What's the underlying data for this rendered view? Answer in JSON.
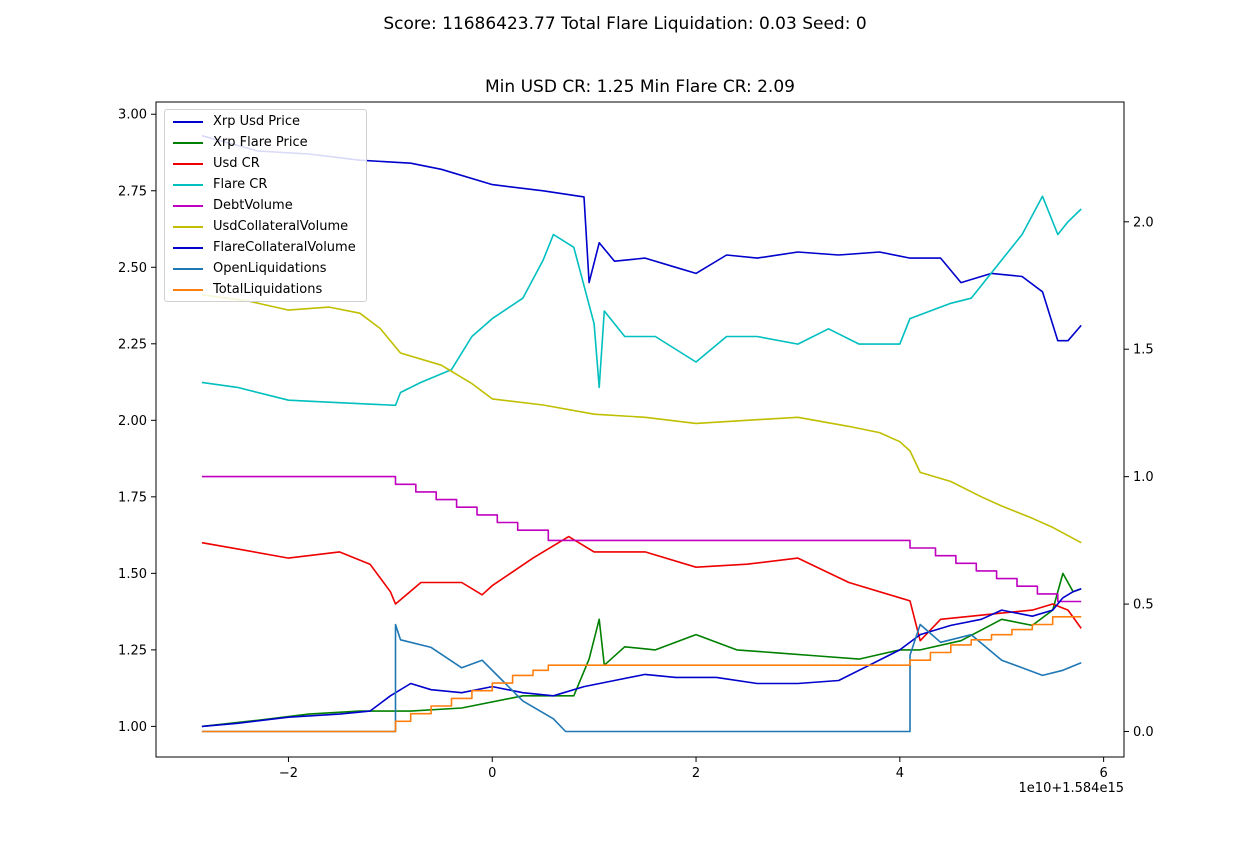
{
  "suptitle": "Score: 11686423.77 Total Flare Liquidation: 0.03 Seed: 0",
  "axes_title": "Min USD CR: 1.25 Min Flare CR: 2.09",
  "x_offset_label": "1e10+1.584e15",
  "chart_data": {
    "type": "line",
    "title": "Min USD CR: 1.25 Min Flare CR: 2.09",
    "xlim": [
      -3.3,
      6.2
    ],
    "ylim_left": [
      0.9,
      3.04
    ],
    "ylim_right": [
      -0.1,
      2.47
    ],
    "x_ticks": [
      -2,
      0,
      2,
      4,
      6
    ],
    "x_tick_labels": [
      "−2",
      "0",
      "2",
      "4",
      "6"
    ],
    "y_ticks_left": [
      1.0,
      1.25,
      1.5,
      1.75,
      2.0,
      2.25,
      2.5,
      2.75,
      3.0
    ],
    "y_tick_labels_left": [
      "1.00",
      "1.25",
      "1.50",
      "1.75",
      "2.00",
      "2.25",
      "2.50",
      "2.75",
      "3.00"
    ],
    "y_ticks_right": [
      0.0,
      0.5,
      1.0,
      1.5,
      2.0
    ],
    "y_tick_labels_right": [
      "0.0",
      "0.5",
      "1.0",
      "1.5",
      "2.0"
    ],
    "grid": false,
    "legend_position": "top-left",
    "series": [
      {
        "name": "Xrp Usd Price",
        "color": "#0000cc",
        "axis": "left",
        "x": [
          -2.85,
          -2.3,
          -1.8,
          -1.3,
          -0.8,
          -0.5,
          0,
          0.5,
          0.9,
          0.95,
          1.05,
          1.2,
          1.5,
          1.8,
          2.0,
          2.3,
          2.6,
          3.0,
          3.4,
          3.8,
          4.1,
          4.4,
          4.6,
          4.9,
          5.2,
          5.4,
          5.55,
          5.65,
          5.78
        ],
        "y": [
          2.93,
          2.88,
          2.87,
          2.85,
          2.84,
          2.82,
          2.77,
          2.75,
          2.73,
          2.45,
          2.58,
          2.52,
          2.53,
          2.5,
          2.48,
          2.54,
          2.53,
          2.55,
          2.54,
          2.55,
          2.53,
          2.53,
          2.45,
          2.48,
          2.47,
          2.42,
          2.26,
          2.26,
          2.31
        ]
      },
      {
        "name": "Xrp Flare Price",
        "color": "#008000",
        "axis": "left",
        "x": [
          -2.85,
          -2.3,
          -1.8,
          -1.3,
          -0.8,
          -0.3,
          0.3,
          0.8,
          0.95,
          1.05,
          1.1,
          1.3,
          1.6,
          2.0,
          2.4,
          2.8,
          3.2,
          3.6,
          4.0,
          4.2,
          4.6,
          5.0,
          5.3,
          5.5,
          5.6,
          5.7,
          5.78
        ],
        "y": [
          1.0,
          1.02,
          1.04,
          1.05,
          1.05,
          1.06,
          1.1,
          1.1,
          1.22,
          1.35,
          1.2,
          1.26,
          1.25,
          1.3,
          1.25,
          1.24,
          1.23,
          1.22,
          1.25,
          1.25,
          1.28,
          1.35,
          1.33,
          1.38,
          1.5,
          1.44,
          1.45
        ]
      },
      {
        "name": "Usd CR",
        "color": "#ee0000",
        "axis": "left",
        "x": [
          -2.85,
          -2.5,
          -2.0,
          -1.5,
          -1.2,
          -1.0,
          -0.95,
          -0.7,
          -0.3,
          -0.1,
          0,
          0.4,
          0.75,
          1.0,
          1.5,
          2.0,
          2.5,
          3.0,
          3.5,
          4.0,
          4.1,
          4.2,
          4.4,
          4.7,
          5.0,
          5.3,
          5.5,
          5.65,
          5.78
        ],
        "y": [
          1.6,
          1.58,
          1.55,
          1.57,
          1.53,
          1.44,
          1.4,
          1.47,
          1.47,
          1.43,
          1.46,
          1.55,
          1.62,
          1.57,
          1.57,
          1.52,
          1.53,
          1.55,
          1.47,
          1.42,
          1.41,
          1.28,
          1.35,
          1.36,
          1.37,
          1.38,
          1.4,
          1.38,
          1.32
        ]
      },
      {
        "name": "Flare CR",
        "color": "#00bfbf",
        "axis": "right",
        "x": [
          -2.85,
          -2.5,
          -2.0,
          -1.5,
          -0.95,
          -0.9,
          -0.7,
          -0.4,
          -0.2,
          0,
          0.3,
          0.5,
          0.6,
          0.8,
          1.0,
          1.05,
          1.1,
          1.3,
          1.6,
          2.0,
          2.3,
          2.6,
          3.0,
          3.3,
          3.6,
          4.0,
          4.1,
          4.5,
          4.7,
          5.0,
          5.2,
          5.4,
          5.55,
          5.65,
          5.78
        ],
        "y": [
          1.37,
          1.35,
          1.3,
          1.29,
          1.28,
          1.33,
          1.37,
          1.42,
          1.55,
          1.62,
          1.7,
          1.85,
          1.95,
          1.9,
          1.6,
          1.35,
          1.65,
          1.55,
          1.55,
          1.45,
          1.55,
          1.55,
          1.52,
          1.58,
          1.52,
          1.52,
          1.62,
          1.68,
          1.7,
          1.85,
          1.95,
          2.1,
          1.95,
          2.0,
          2.05
        ]
      },
      {
        "name": "DebtVolume",
        "color": "#bf00bf",
        "axis": "right",
        "x": [
          -2.85,
          -0.95,
          -0.95,
          -0.75,
          -0.75,
          -0.55,
          -0.55,
          -0.35,
          -0.35,
          -0.15,
          -0.15,
          0.05,
          0.05,
          0.25,
          0.25,
          0.55,
          0.55,
          4.1,
          4.1,
          4.35,
          4.35,
          4.55,
          4.55,
          4.75,
          4.75,
          4.95,
          4.95,
          5.15,
          5.15,
          5.35,
          5.35,
          5.55,
          5.55,
          5.78
        ],
        "y": [
          1.0,
          1.0,
          0.97,
          0.97,
          0.94,
          0.94,
          0.91,
          0.91,
          0.88,
          0.88,
          0.85,
          0.85,
          0.82,
          0.82,
          0.79,
          0.79,
          0.75,
          0.75,
          0.72,
          0.72,
          0.69,
          0.69,
          0.66,
          0.66,
          0.63,
          0.63,
          0.6,
          0.6,
          0.57,
          0.57,
          0.54,
          0.54,
          0.51,
          0.51
        ]
      },
      {
        "name": "UsdCollateralVolume",
        "color": "#bfbf00",
        "axis": "left",
        "x": [
          -2.85,
          -2.4,
          -2.0,
          -1.6,
          -1.3,
          -1.1,
          -0.9,
          -0.5,
          -0.2,
          0,
          0.5,
          1.0,
          1.5,
          2.0,
          2.5,
          3.0,
          3.5,
          3.8,
          4.0,
          4.1,
          4.2,
          4.5,
          4.8,
          5.0,
          5.3,
          5.5,
          5.78
        ],
        "y": [
          2.41,
          2.39,
          2.36,
          2.37,
          2.35,
          2.3,
          2.22,
          2.18,
          2.12,
          2.07,
          2.05,
          2.02,
          2.01,
          1.99,
          2.0,
          2.01,
          1.98,
          1.96,
          1.93,
          1.9,
          1.83,
          1.8,
          1.75,
          1.72,
          1.68,
          1.65,
          1.6
        ]
      },
      {
        "name": "FlareCollateralVolume",
        "color": "#0000cc",
        "axis": "left",
        "x": [
          -2.85,
          -2.5,
          -2.0,
          -1.5,
          -1.2,
          -1.0,
          -0.8,
          -0.6,
          -0.3,
          0,
          0.3,
          0.6,
          0.9,
          1.2,
          1.5,
          1.8,
          2.2,
          2.6,
          3.0,
          3.4,
          3.7,
          4.0,
          4.2,
          4.5,
          4.8,
          5.0,
          5.3,
          5.5,
          5.6,
          5.7,
          5.78
        ],
        "y": [
          1.0,
          1.01,
          1.03,
          1.04,
          1.05,
          1.1,
          1.14,
          1.12,
          1.11,
          1.13,
          1.11,
          1.1,
          1.13,
          1.15,
          1.17,
          1.16,
          1.16,
          1.14,
          1.14,
          1.15,
          1.2,
          1.25,
          1.3,
          1.33,
          1.35,
          1.38,
          1.36,
          1.38,
          1.42,
          1.44,
          1.45
        ]
      },
      {
        "name": "OpenLiquidations",
        "color": "#1f77b4",
        "axis": "right",
        "x": [
          -2.85,
          -0.95,
          -0.95,
          -0.9,
          -0.6,
          -0.3,
          -0.1,
          0.1,
          0.3,
          0.6,
          0.72,
          0.72,
          4.1,
          4.1,
          4.2,
          4.4,
          4.7,
          5.0,
          5.2,
          5.4,
          5.6,
          5.78
        ],
        "y": [
          0.0,
          0.0,
          0.42,
          0.36,
          0.33,
          0.25,
          0.28,
          0.2,
          0.12,
          0.05,
          0.0,
          0.0,
          0.0,
          0.3,
          0.42,
          0.35,
          0.38,
          0.28,
          0.25,
          0.22,
          0.24,
          0.27
        ]
      },
      {
        "name": "TotalLiquidations",
        "color": "#ff7f0e",
        "axis": "right",
        "x": [
          -2.85,
          -0.95,
          -0.95,
          -0.8,
          -0.8,
          -0.6,
          -0.6,
          -0.4,
          -0.4,
          -0.2,
          -0.2,
          0,
          0,
          0.2,
          0.2,
          0.4,
          0.4,
          0.55,
          0.55,
          4.1,
          4.1,
          4.3,
          4.3,
          4.5,
          4.5,
          4.7,
          4.7,
          4.9,
          4.9,
          5.1,
          5.1,
          5.3,
          5.3,
          5.5,
          5.5,
          5.78
        ],
        "y": [
          0.0,
          0.0,
          0.04,
          0.04,
          0.07,
          0.07,
          0.1,
          0.1,
          0.13,
          0.13,
          0.16,
          0.16,
          0.19,
          0.19,
          0.22,
          0.22,
          0.24,
          0.24,
          0.26,
          0.26,
          0.28,
          0.28,
          0.31,
          0.31,
          0.34,
          0.34,
          0.36,
          0.36,
          0.38,
          0.38,
          0.4,
          0.4,
          0.42,
          0.42,
          0.45,
          0.45
        ]
      }
    ]
  }
}
